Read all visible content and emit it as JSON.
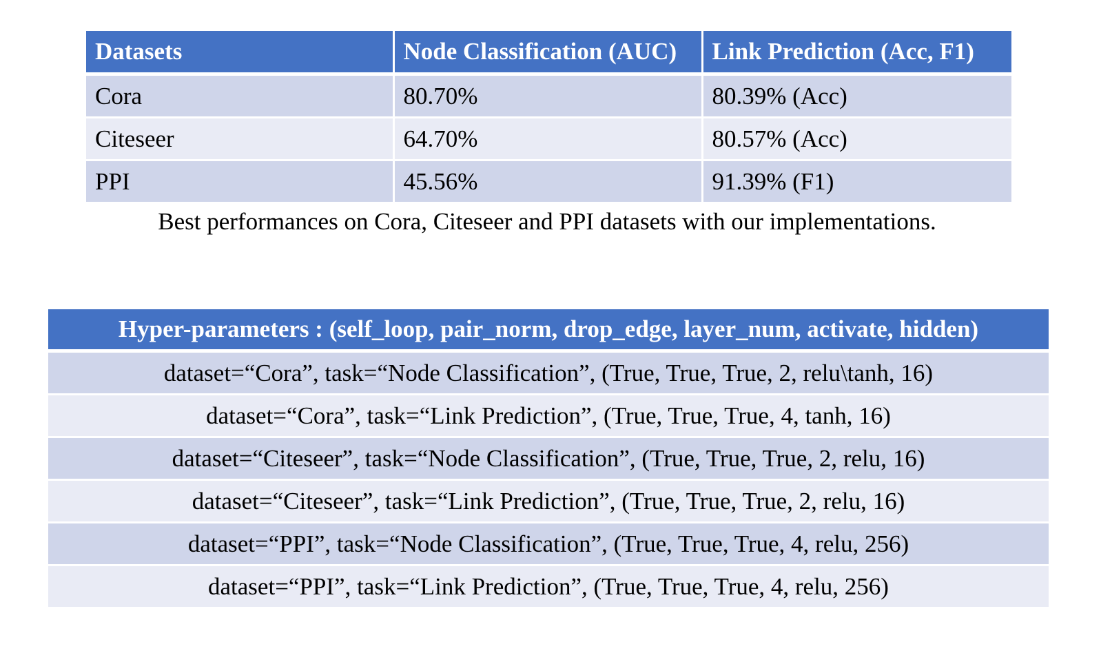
{
  "results_table": {
    "headers": [
      "Datasets",
      "Node Classification (AUC)",
      "Link Prediction (Acc, F1)"
    ],
    "rows": [
      [
        "Cora",
        "80.70%",
        "80.39% (Acc)"
      ],
      [
        "Citeseer",
        "64.70%",
        "80.57% (Acc)"
      ],
      [
        "PPI",
        "45.56%",
        "91.39% (F1)"
      ]
    ],
    "header_color": "#4472c4",
    "row_color_dark": "#cfd5ea",
    "row_color_light": "#e9ebf5"
  },
  "caption": "Best performances on Cora, Citeseer and PPI datasets with our implementations.",
  "hyper_table": {
    "header": "Hyper-parameters : (self_loop, pair_norm, drop_edge, layer_num, activate, hidden)",
    "rows": [
      "dataset=“Cora”, task=“Node Classification”, (True, True, True, 2, relu\\tanh, 16)",
      "dataset=“Cora”, task=“Link Prediction”, (True, True, True, 4, tanh, 16)",
      "dataset=“Citeseer”, task=“Node Classification”, (True, True, True, 2, relu, 16)",
      "dataset=“Citeseer”, task=“Link Prediction”, (True, True, True, 2, relu, 16)",
      "dataset=“PPI”, task=“Node Classification”, (True, True, True, 4, relu, 256)",
      "dataset=“PPI”, task=“Link Prediction”, (True, True, True, 4, relu, 256)"
    ]
  }
}
